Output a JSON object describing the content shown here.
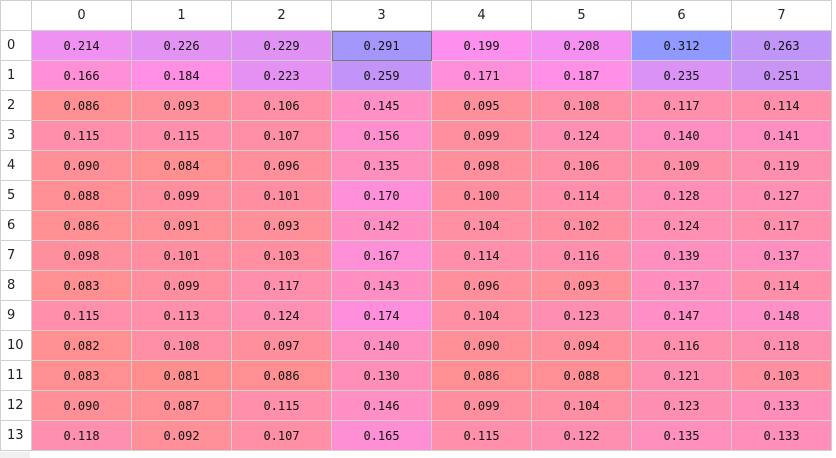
{
  "columns": [
    "0",
    "1",
    "2",
    "3",
    "4",
    "5",
    "6",
    "7"
  ],
  "rows": [
    {
      "label": "0",
      "values": [
        "0.214",
        "0.226",
        "0.229",
        "0.291",
        "0.199",
        "0.208",
        "0.312",
        "0.263"
      ]
    },
    {
      "label": "1",
      "values": [
        "0.166",
        "0.184",
        "0.223",
        "0.259",
        "0.171",
        "0.187",
        "0.235",
        "0.251"
      ]
    },
    {
      "label": "2",
      "values": [
        "0.086",
        "0.093",
        "0.106",
        "0.145",
        "0.095",
        "0.108",
        "0.117",
        "0.114"
      ]
    },
    {
      "label": "3",
      "values": [
        "0.115",
        "0.115",
        "0.107",
        "0.156",
        "0.099",
        "0.124",
        "0.140",
        "0.141"
      ]
    },
    {
      "label": "4",
      "values": [
        "0.090",
        "0.084",
        "0.096",
        "0.135",
        "0.098",
        "0.106",
        "0.109",
        "0.119"
      ]
    },
    {
      "label": "5",
      "values": [
        "0.088",
        "0.099",
        "0.101",
        "0.170",
        "0.100",
        "0.114",
        "0.128",
        "0.127"
      ]
    },
    {
      "label": "6",
      "values": [
        "0.086",
        "0.091",
        "0.093",
        "0.142",
        "0.104",
        "0.102",
        "0.124",
        "0.117"
      ]
    },
    {
      "label": "7",
      "values": [
        "0.098",
        "0.101",
        "0.103",
        "0.167",
        "0.114",
        "0.116",
        "0.139",
        "0.137"
      ]
    },
    {
      "label": "8",
      "values": [
        "0.083",
        "0.099",
        "0.117",
        "0.143",
        "0.096",
        "0.093",
        "0.137",
        "0.114"
      ]
    },
    {
      "label": "9",
      "values": [
        "0.115",
        "0.113",
        "0.124",
        "0.174",
        "0.104",
        "0.123",
        "0.147",
        "0.148"
      ]
    },
    {
      "label": "10",
      "values": [
        "0.082",
        "0.108",
        "0.097",
        "0.140",
        "0.090",
        "0.094",
        "0.116",
        "0.118"
      ]
    },
    {
      "label": "11",
      "values": [
        "0.083",
        "0.081",
        "0.086",
        "0.130",
        "0.086",
        "0.088",
        "0.121",
        "0.103"
      ]
    },
    {
      "label": "12",
      "values": [
        "0.090",
        "0.087",
        "0.115",
        "0.146",
        "0.099",
        "0.104",
        "0.123",
        "0.133"
      ]
    },
    {
      "label": "13",
      "values": [
        "0.118",
        "0.092",
        "0.107",
        "0.165",
        "0.115",
        "0.122",
        "0.135",
        "0.133"
      ]
    }
  ],
  "selected_cell": {
    "row": 0,
    "col": 3
  },
  "colors": {
    "low": "#ff8f8f",
    "mid": "#ff8fef",
    "high": "#8f99ff"
  }
}
